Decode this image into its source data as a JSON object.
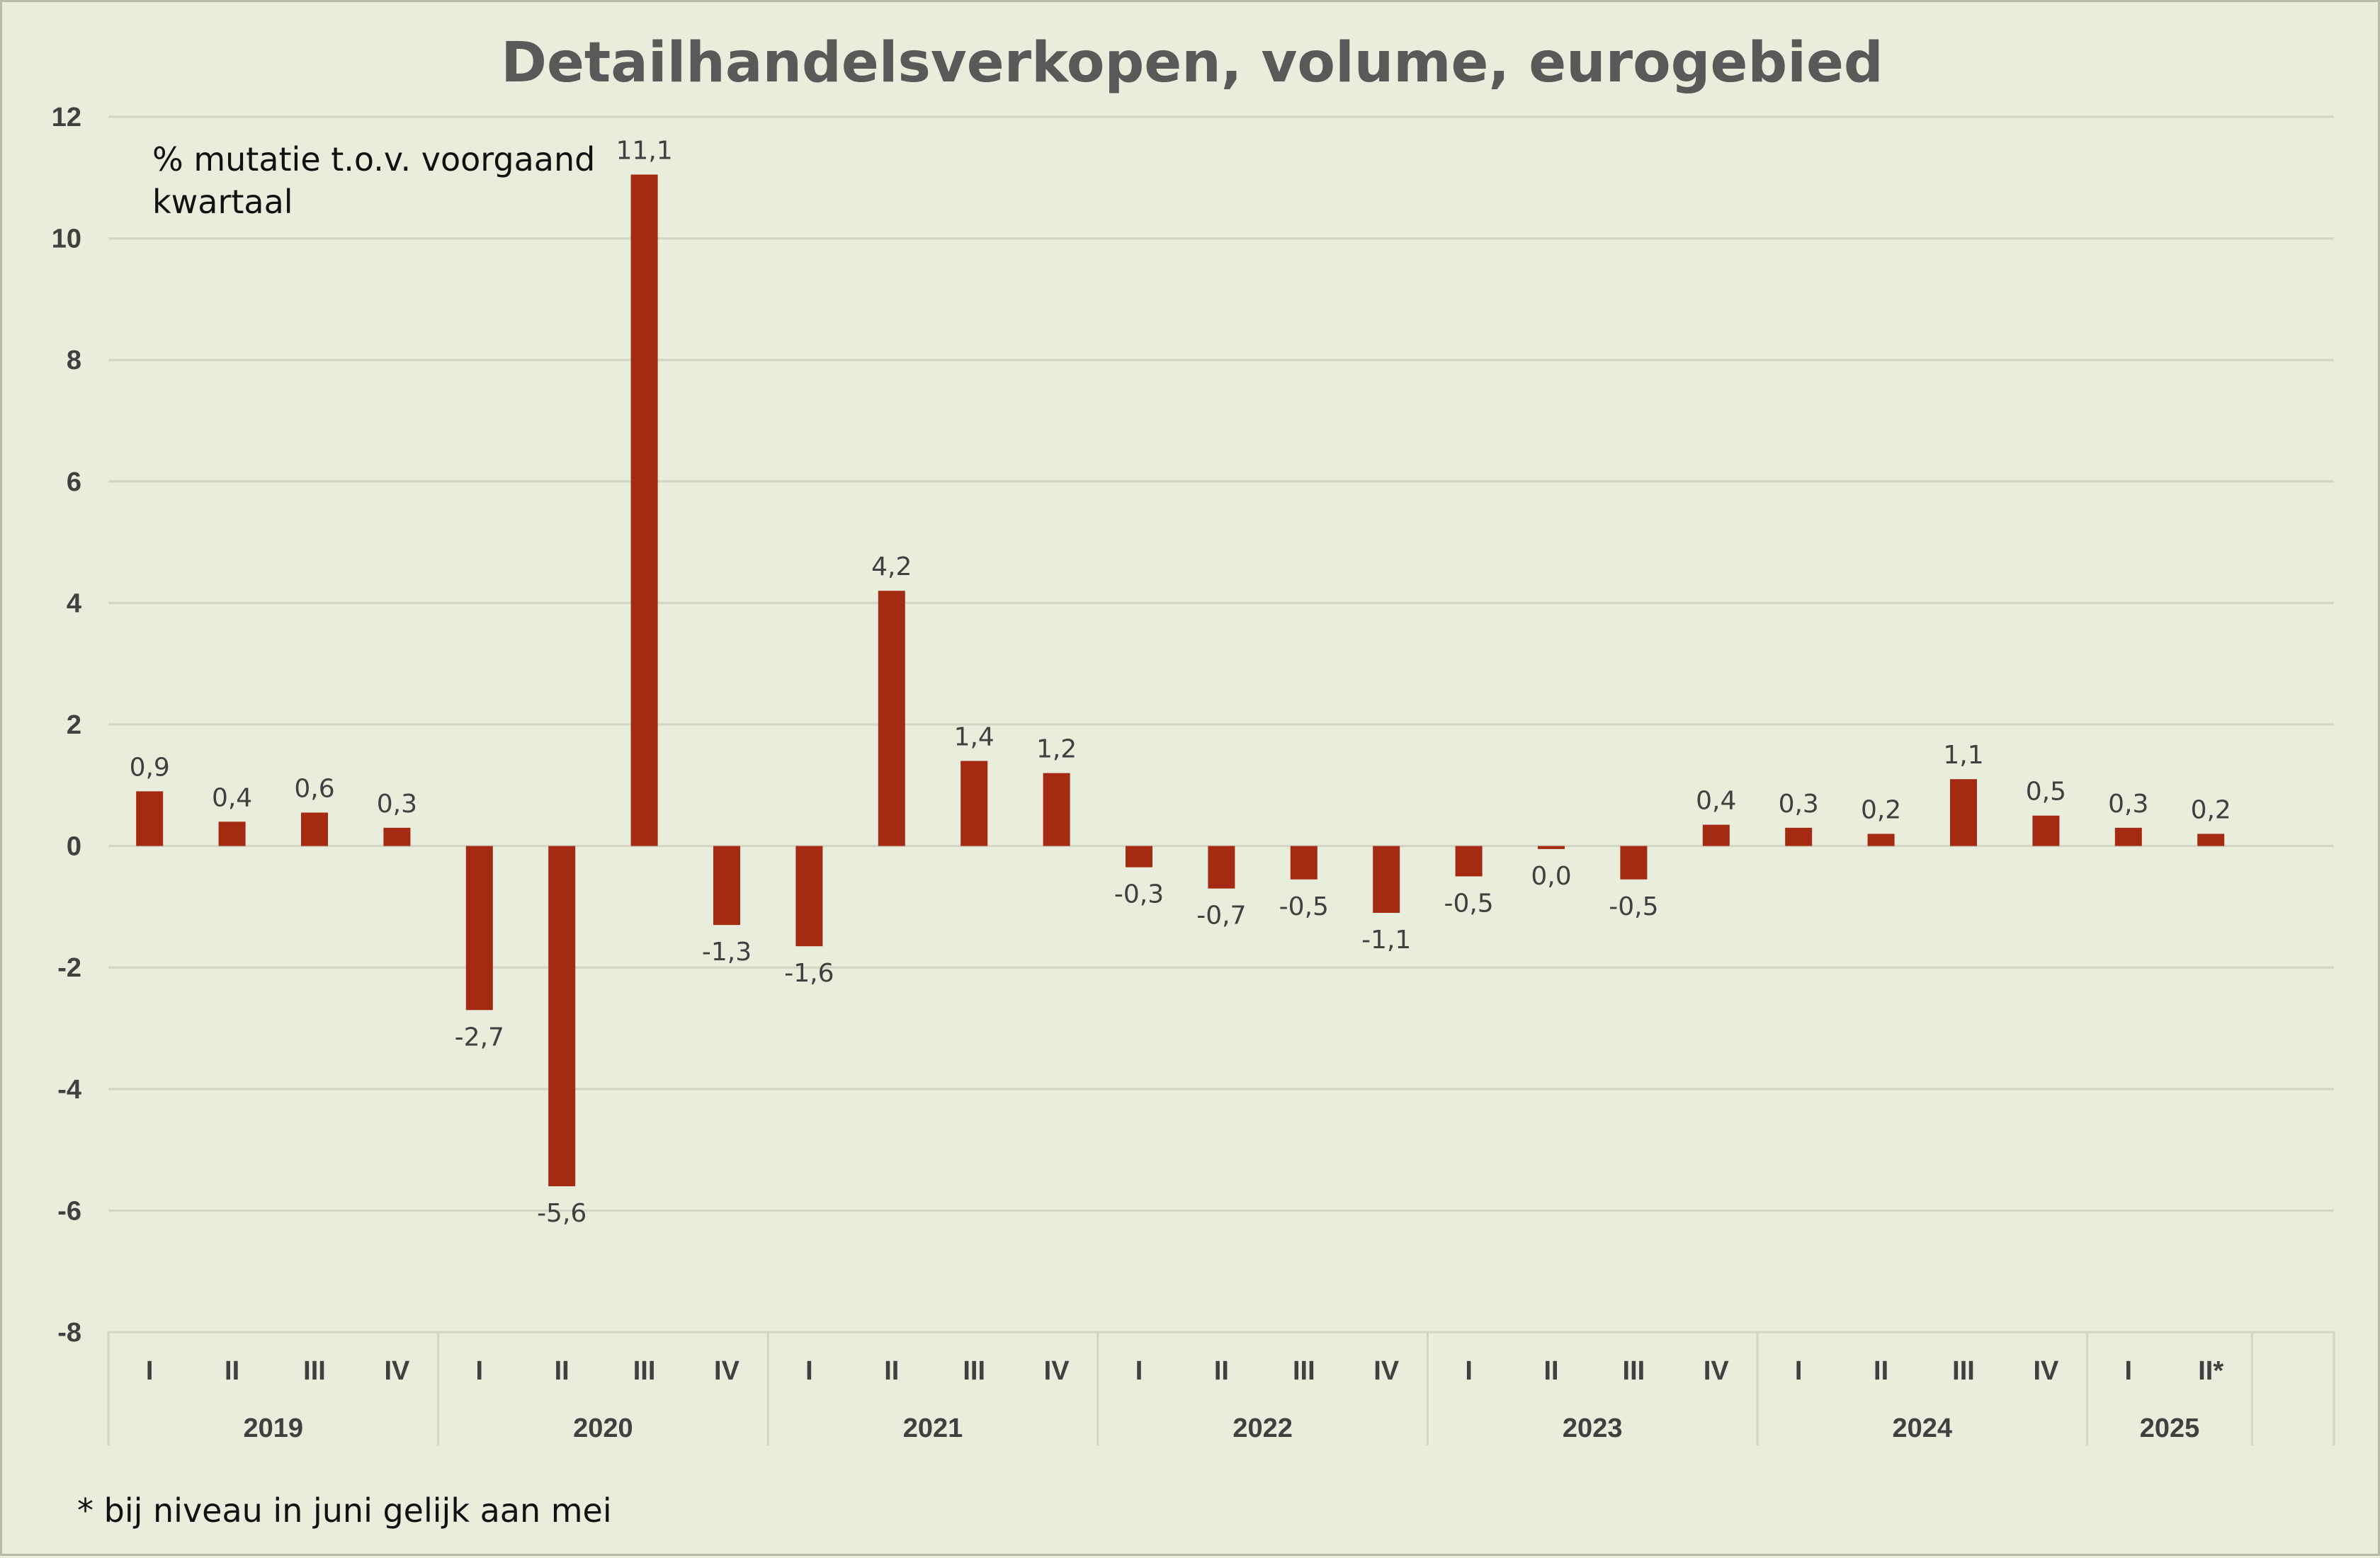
{
  "chart_data": {
    "type": "bar",
    "title": "Detailhandelsverkopen, volume, eurogebied",
    "annotation": [
      "% mutatie t.o.v. voorgaand",
      "kwartaal"
    ],
    "footnote": "* bij niveau in juni gelijk aan mei",
    "ylim": [
      -8,
      12
    ],
    "yticks": [
      12,
      10,
      8,
      6,
      4,
      2,
      0,
      -2,
      -4,
      -6,
      -8
    ],
    "grid": true,
    "legend": "none",
    "colors": {
      "bar": "#a52a12",
      "grid": "#d2d5c4",
      "background": "#e9eddc"
    },
    "groups": [
      {
        "year": "2019",
        "quarters": [
          "I",
          "II",
          "III",
          "IV"
        ]
      },
      {
        "year": "2020",
        "quarters": [
          "I",
          "II",
          "III",
          "IV"
        ]
      },
      {
        "year": "2021",
        "quarters": [
          "I",
          "II",
          "III",
          "IV"
        ]
      },
      {
        "year": "2022",
        "quarters": [
          "I",
          "II",
          "III",
          "IV"
        ]
      },
      {
        "year": "2023",
        "quarters": [
          "I",
          "II",
          "III",
          "IV"
        ]
      },
      {
        "year": "2024",
        "quarters": [
          "I",
          "II",
          "III",
          "IV"
        ]
      },
      {
        "year": "2025",
        "quarters": [
          "I",
          "II*"
        ]
      }
    ],
    "values": [
      0.9,
      0.4,
      0.55,
      0.3,
      -2.7,
      -5.6,
      11.05,
      -1.3,
      -1.65,
      4.2,
      1.4,
      1.2,
      -0.35,
      -0.7,
      -0.55,
      -1.1,
      -0.5,
      -0.05,
      -0.55,
      0.35,
      0.3,
      0.2,
      1.1,
      0.5,
      0.3,
      0.2
    ],
    "data_labels": [
      "0,9",
      "0,4",
      "0,6",
      "0,3",
      "-2,7",
      "-5,6",
      "11,1",
      "-1,3",
      "-1,6",
      "4,2",
      "1,4",
      "1,2",
      "-0,3",
      "-0,7",
      "-0,5",
      "-1,1",
      "-0,5",
      "0,0",
      "-0,5",
      "0,4",
      "0,3",
      "0,2",
      "1,1",
      "0,5",
      "0,3",
      "0,2"
    ]
  }
}
